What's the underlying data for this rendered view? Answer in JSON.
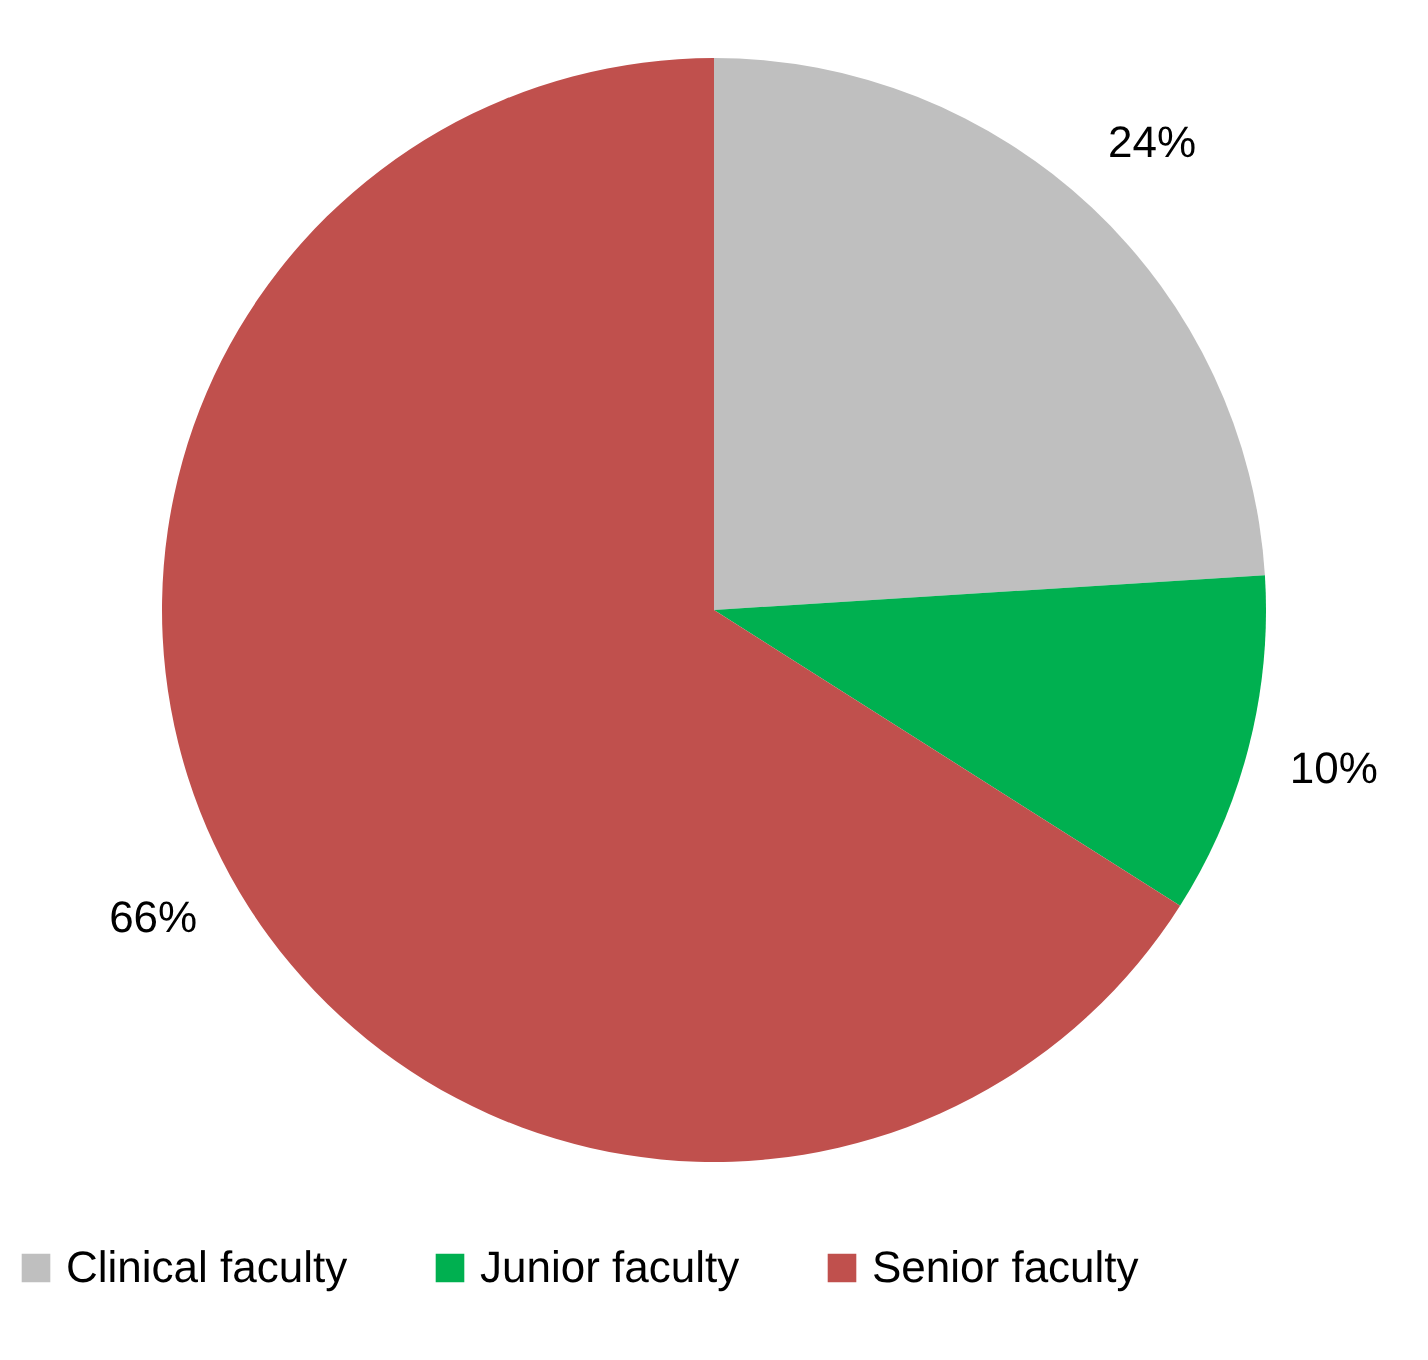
{
  "chart_data": {
    "type": "pie",
    "categories": [
      "Clinical faculty",
      "Junior faculty",
      "Senior faculty"
    ],
    "values": [
      24,
      10,
      66
    ],
    "colors": [
      "#bfbfbf",
      "#00b050",
      "#c0504d"
    ],
    "value_labels": [
      "24%",
      "10%",
      "66%"
    ],
    "legend": "bottom"
  }
}
